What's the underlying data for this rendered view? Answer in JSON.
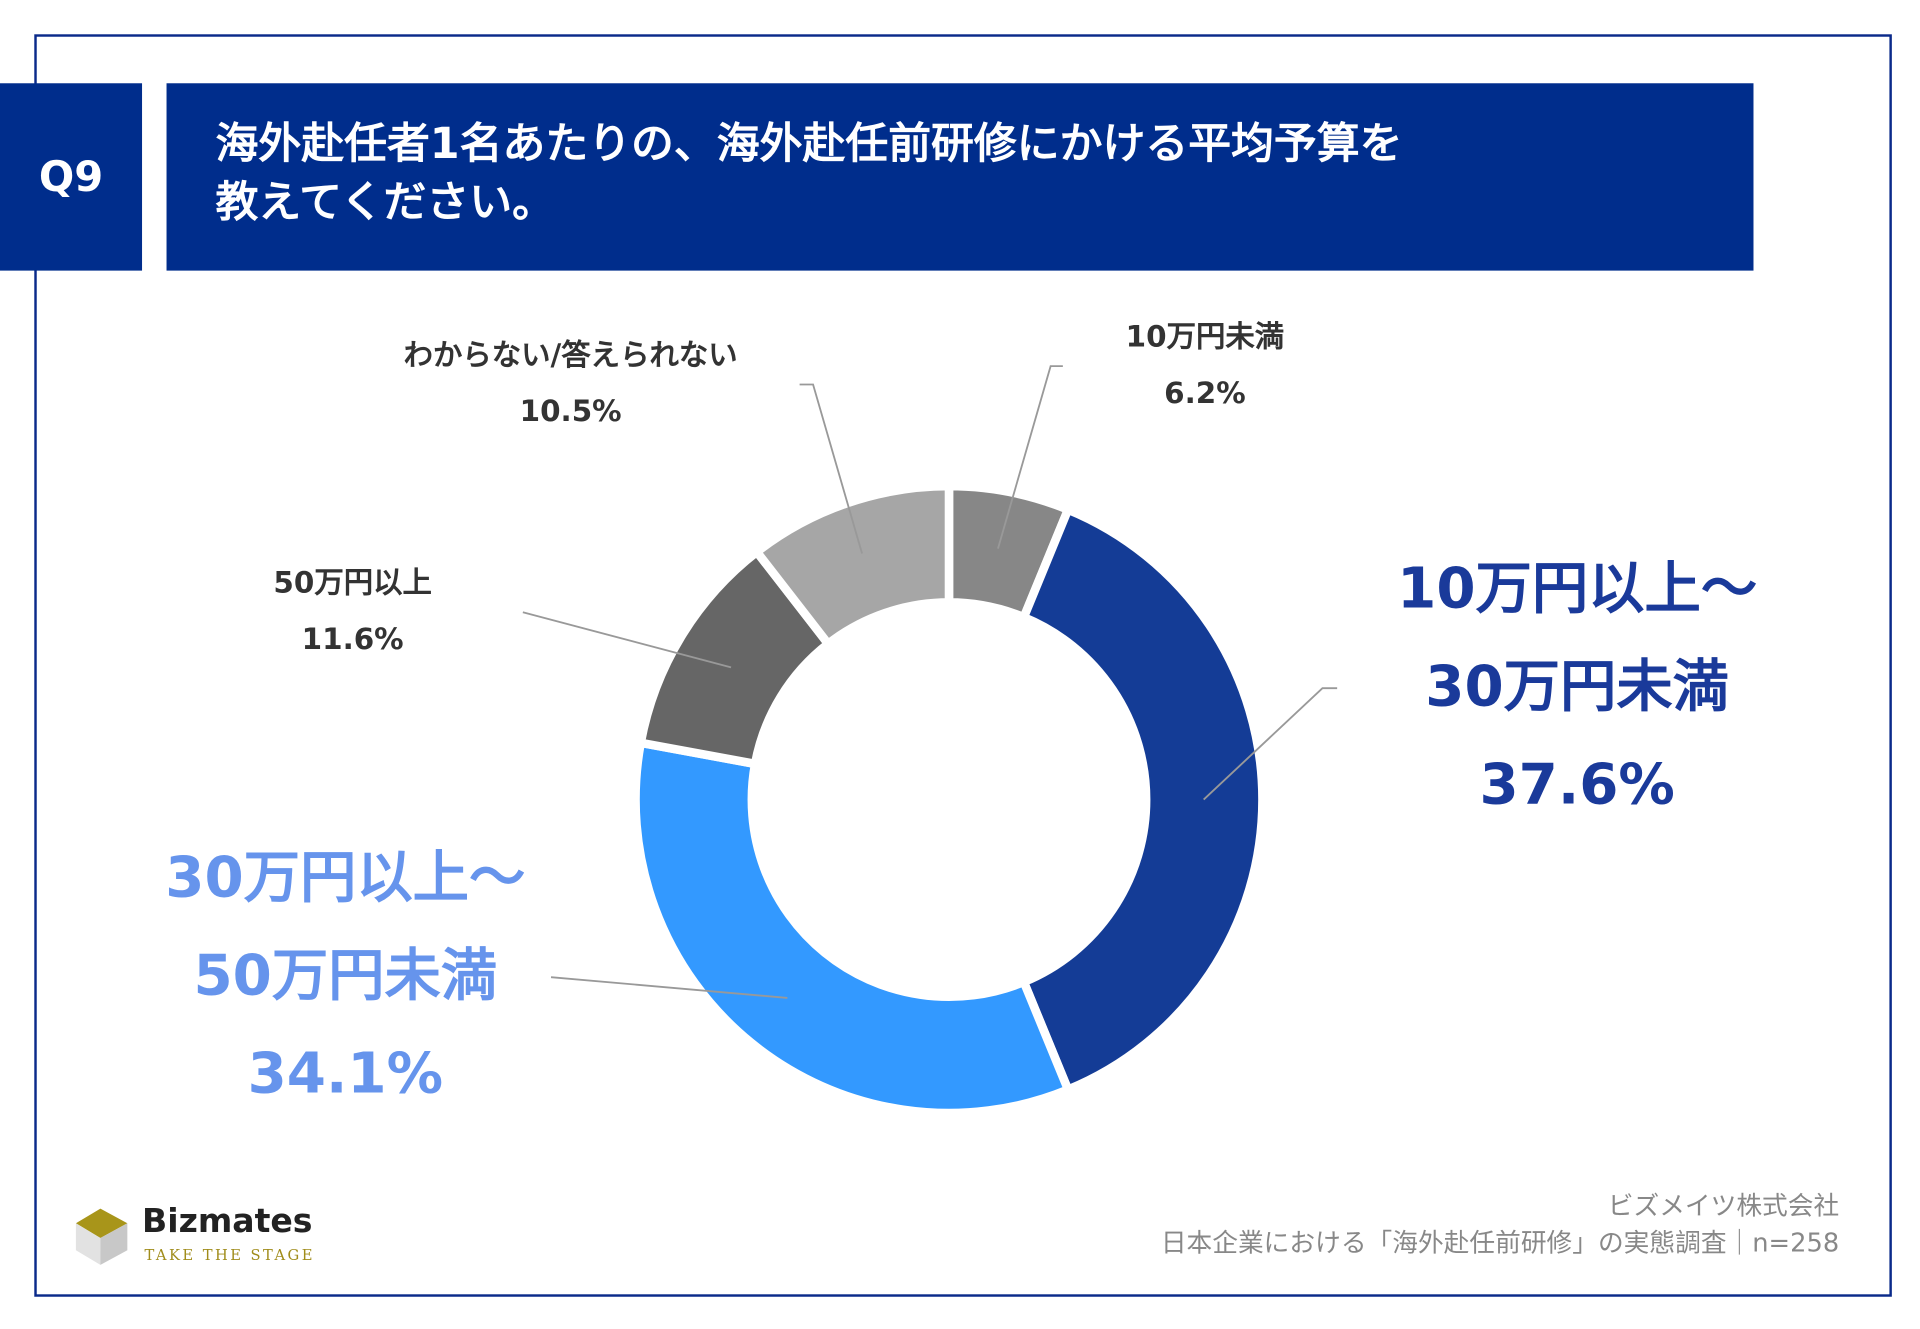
{
  "header": {
    "question_no": "Q9",
    "title_line1": "海外赴任者1名あたりの、海外赴任前研修にかける平均予算を",
    "title_line2": "教えてください。"
  },
  "chart_data": {
    "type": "pie",
    "subtype": "donut",
    "title": "海外赴任者1名あたりの、海外赴任前研修にかける平均予算を教えてください。",
    "slices": [
      {
        "label": "10万円未満",
        "label_lines": [
          "10万円未満"
        ],
        "value": 6.2,
        "value_label": "6.2%",
        "color": "#878787",
        "label_color": "#333333"
      },
      {
        "label": "10万円以上～30万円未満",
        "label_lines": [
          "10万円以上～",
          "30万円未満"
        ],
        "value": 37.6,
        "value_label": "37.6%",
        "color": "#143c96",
        "label_color": "#1a3a9a"
      },
      {
        "label": "30万円以上～50万円未満",
        "label_lines": [
          "30万円以上～",
          "50万円未満"
        ],
        "value": 34.1,
        "value_label": "34.1%",
        "color": "#3399ff",
        "label_color": "#6694ec"
      },
      {
        "label": "50万円以上",
        "label_lines": [
          "50万円以上"
        ],
        "value": 11.6,
        "value_label": "11.6%",
        "color": "#666666",
        "label_color": "#333333"
      },
      {
        "label": "わからない/答えられない",
        "label_lines": [
          "わからない/答えられない"
        ],
        "value": 10.5,
        "value_label": "10.5%",
        "color": "#a6a6a6",
        "label_color": "#333333"
      }
    ]
  },
  "footer": {
    "logo_name": "Bizmates",
    "logo_tagline": "TAKE THE STAGE",
    "company": "ビズメイツ株式会社",
    "source": "日本企業における「海外赴任前研修」の実態調査｜n=258"
  }
}
